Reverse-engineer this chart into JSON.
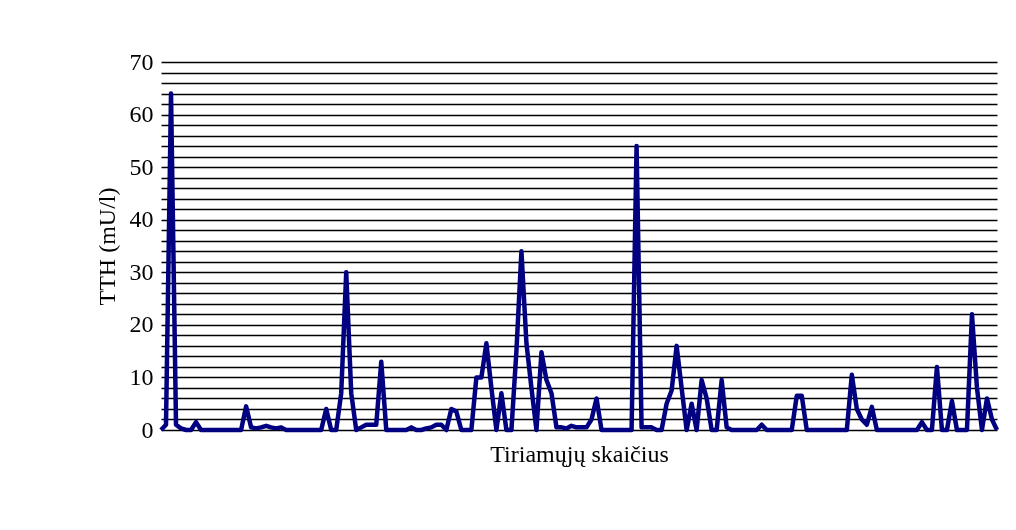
{
  "chart_data": {
    "type": "line",
    "xlabel": "Tiriamųjų skaičius",
    "ylabel": "TTH (mU/l)",
    "categories": [
      null,
      null,
      null,
      null,
      null,
      null,
      null,
      null,
      null,
      null,
      null,
      null,
      null,
      null,
      null,
      null,
      null,
      null,
      null,
      null,
      null,
      null,
      null,
      null,
      null,
      null,
      null,
      null,
      null,
      null,
      null,
      null,
      null,
      null,
      null,
      null,
      null,
      null,
      null,
      null,
      null,
      null,
      null,
      null,
      null,
      null,
      null,
      null,
      null,
      null,
      null,
      null,
      null,
      null,
      null,
      null,
      null,
      null,
      null,
      null,
      null,
      null,
      null,
      null,
      null,
      null,
      null,
      null,
      null,
      null,
      null,
      null,
      null,
      null,
      null,
      null,
      null,
      null,
      null,
      null,
      null,
      null,
      null,
      null,
      null,
      null,
      null,
      null,
      null,
      null,
      null,
      null,
      null,
      null,
      null,
      null,
      null,
      null,
      null,
      null,
      null,
      null,
      null,
      null,
      null,
      null,
      null,
      null,
      null,
      null,
      null,
      null,
      null,
      null,
      null,
      null,
      null,
      null,
      null,
      null,
      null,
      null,
      null,
      null,
      null,
      null,
      null,
      null,
      null,
      null,
      null,
      null,
      null,
      null,
      null,
      null,
      null,
      null,
      null,
      null,
      null,
      null,
      null,
      null,
      null,
      null,
      null,
      null,
      null,
      null,
      null,
      null,
      null,
      null,
      null,
      null,
      null,
      null,
      null,
      null,
      null,
      null,
      null,
      null,
      null,
      null,
      null,
      null
    ],
    "series": [
      {
        "color": "#000080",
        "values": [
          0,
          1,
          64,
          1,
          0.3,
          0,
          0,
          1.5,
          0,
          0,
          0,
          0,
          0,
          0,
          0,
          0,
          0,
          4.5,
          0.5,
          0.3,
          0.5,
          0.8,
          0.5,
          0.3,
          0.5,
          0,
          0,
          0,
          0,
          0,
          0,
          0,
          0,
          4,
          0,
          0,
          7,
          30,
          7,
          0,
          0.5,
          1,
          1,
          1,
          13,
          0,
          0,
          0,
          0,
          0,
          0.5,
          0,
          0,
          0.3,
          0.5,
          1,
          1,
          0,
          4,
          3.5,
          0,
          0,
          0,
          10,
          10,
          16.5,
          8,
          0,
          7,
          0,
          0,
          15,
          34,
          16.5,
          8,
          0,
          14.8,
          9.5,
          7,
          0.5,
          0.5,
          0.3,
          0.8,
          0.5,
          0.5,
          0.5,
          2,
          6,
          0,
          0,
          0,
          0,
          0,
          0,
          0,
          54,
          0.5,
          0.5,
          0.5,
          0,
          0,
          5,
          7.5,
          16,
          8,
          0,
          5,
          0,
          9.5,
          6,
          0,
          0,
          9.5,
          0.5,
          0,
          0,
          0,
          0,
          0,
          0,
          1,
          0,
          0,
          0,
          0,
          0,
          0,
          6.5,
          6.5,
          0,
          0,
          0,
          0,
          0,
          0,
          0,
          0,
          0,
          10.5,
          4,
          2,
          1,
          4.4,
          0,
          0,
          0,
          0,
          0,
          0,
          0,
          0,
          0,
          1.5,
          0,
          0,
          12,
          0,
          0,
          5.5,
          0,
          0,
          0,
          22,
          8,
          0,
          6,
          2,
          0
        ]
      }
    ],
    "ylim": [
      0,
      70
    ],
    "yticks": [
      0,
      {
        "value": 2,
        "label": null
      },
      {
        "value": 4,
        "label": null
      },
      {
        "value": 6,
        "label": null
      },
      {
        "value": 8,
        "label": null
      },
      10,
      {
        "value": 12,
        "label": null
      },
      {
        "value": 14,
        "label": null
      },
      {
        "value": 16,
        "label": null
      },
      {
        "value": 18,
        "label": null
      },
      20,
      {
        "value": 22,
        "label": null
      },
      {
        "value": 24,
        "label": null
      },
      {
        "value": 26,
        "label": null
      },
      {
        "value": 28,
        "label": null
      },
      30,
      {
        "value": 32,
        "label": null
      },
      {
        "value": 34,
        "label": null
      },
      {
        "value": 36,
        "label": null
      },
      {
        "value": 38,
        "label": null
      },
      40,
      {
        "value": 42,
        "label": null
      },
      {
        "value": 44,
        "label": null
      },
      {
        "value": 46,
        "label": null
      },
      {
        "value": 48,
        "label": null
      },
      50,
      {
        "value": 52,
        "label": null
      },
      {
        "value": 54,
        "label": null
      },
      {
        "value": 56,
        "label": null
      },
      {
        "value": 58,
        "label": null
      },
      60,
      {
        "value": 62,
        "label": null
      },
      {
        "value": 64,
        "label": null
      },
      {
        "value": 66,
        "label": null
      },
      {
        "value": 68,
        "label": null
      },
      70
    ],
    "grid": "y",
    "tick_labels": "y",
    "marker": "none",
    "line_style": "solid"
  }
}
